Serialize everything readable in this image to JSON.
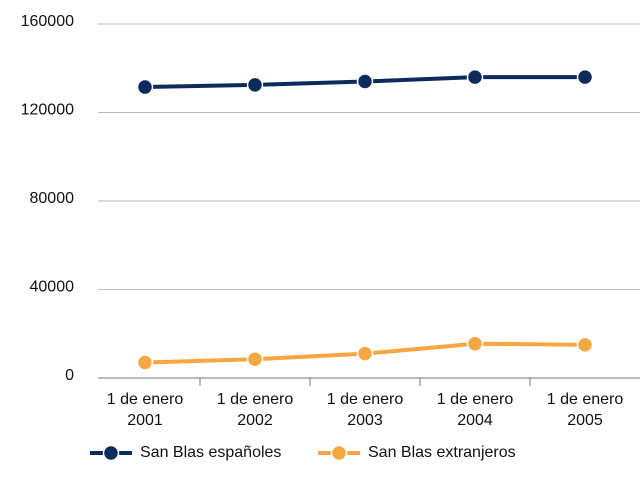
{
  "chart_data": {
    "type": "line",
    "categories": [
      "1 de enero 2001",
      "1 de enero 2002",
      "1 de enero 2003",
      "1 de enero 2004",
      "1 de enero 2005"
    ],
    "series": [
      {
        "name": "San Blas españoles",
        "color": "#0d2a5c",
        "values": [
          131500,
          132500,
          134000,
          136000,
          136000
        ]
      },
      {
        "name": "San Blas extranjeros",
        "color": "#f5a742",
        "values": [
          7000,
          8500,
          11000,
          15500,
          15000
        ]
      }
    ],
    "ylim": [
      0,
      160000
    ],
    "yticks": [
      0,
      40000,
      80000,
      120000,
      160000
    ],
    "grid": true
  }
}
